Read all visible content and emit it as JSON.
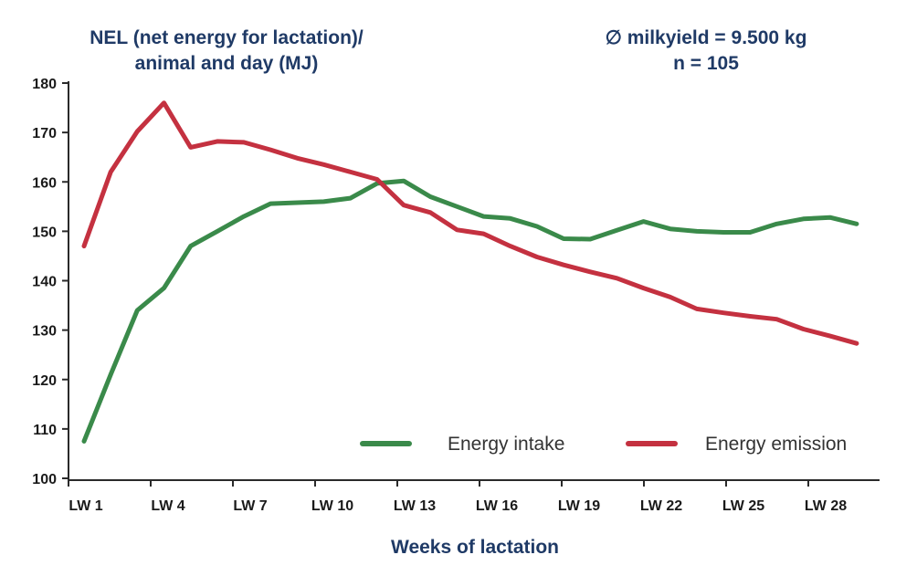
{
  "chart_data": {
    "type": "line",
    "title_lines": [
      "NEL (net energy for lactation)/",
      "animal and day (MJ)"
    ],
    "annotation_lines": [
      "∅ milkyield = 9.500 kg",
      "n = 105"
    ],
    "xlabel": "Weeks of lactation",
    "ylabel": "",
    "ylim": [
      100,
      180
    ],
    "yticks": [
      100,
      110,
      120,
      130,
      140,
      150,
      160,
      170,
      180
    ],
    "xlim": [
      0,
      29.6
    ],
    "xticks": [
      {
        "x": 0,
        "label": "LW 1"
      },
      {
        "x": 3,
        "label": "LW 4"
      },
      {
        "x": 6,
        "label": "LW 7"
      },
      {
        "x": 9,
        "label": "LW 10"
      },
      {
        "x": 12,
        "label": "LW 13"
      },
      {
        "x": 15,
        "label": "LW 16"
      },
      {
        "x": 18,
        "label": "LW 19"
      },
      {
        "x": 21,
        "label": "LW 22"
      },
      {
        "x": 24,
        "label": "LW 25"
      },
      {
        "x": 27,
        "label": "LW 28"
      }
    ],
    "grid": false,
    "legend_position": "bottom-right",
    "series": [
      {
        "name": "Energy intake",
        "color": "#3a8a4a",
        "x": [
          1,
          2,
          3,
          4,
          5,
          6,
          7,
          8,
          9,
          10,
          11,
          12,
          13,
          14,
          15,
          16,
          17,
          18,
          19,
          20,
          21,
          22,
          23,
          24,
          25,
          26,
          27,
          28,
          29,
          30
        ],
        "values": [
          107.5,
          121,
          134,
          138.5,
          147,
          150,
          153,
          155.6,
          155.8,
          156,
          156.7,
          159.7,
          160.2,
          157,
          155,
          153,
          152.6,
          151,
          148.5,
          148.4,
          150.2,
          152,
          150.5,
          150,
          149.8,
          149.8,
          151.5,
          152.5,
          152.8,
          151.5
        ]
      },
      {
        "name": "Energy emission",
        "color": "#c43140",
        "x": [
          1,
          2,
          3,
          4,
          5,
          6,
          7,
          8,
          9,
          10,
          11,
          12,
          13,
          14,
          15,
          16,
          17,
          18,
          19,
          20,
          21,
          22,
          23,
          24,
          25,
          26,
          27,
          28,
          29,
          30
        ],
        "values": [
          147,
          162,
          170.2,
          176,
          167,
          168.2,
          168,
          166.5,
          164.8,
          163.5,
          162,
          160.5,
          155.3,
          153.8,
          150.3,
          149.5,
          147,
          144.8,
          143.2,
          141.8,
          140.5,
          138.5,
          136.7,
          134.3,
          133.5,
          132.8,
          132.2,
          130.2,
          128.8,
          127.3
        ]
      }
    ]
  }
}
